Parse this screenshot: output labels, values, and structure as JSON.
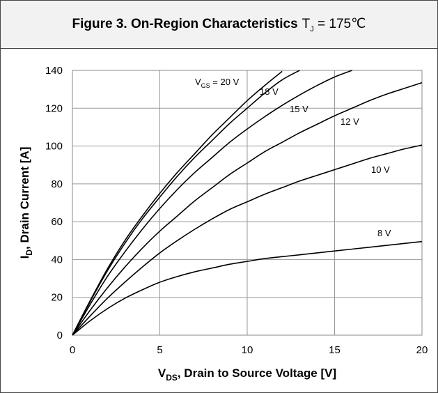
{
  "title": {
    "bold_text": "Figure 3. On-Region Characteristics",
    "cond_var": "T",
    "cond_sub": "J",
    "cond_value": " = 175℃"
  },
  "chart_data": {
    "type": "line",
    "xlabel": "V_DS, Drain to Source Voltage [V]",
    "ylabel": "I_D, Drain Current [A]",
    "xlim": [
      0,
      20
    ],
    "ylim": [
      0,
      140
    ],
    "x_ticks": [
      0,
      5,
      10,
      15,
      20
    ],
    "y_ticks": [
      0,
      20,
      40,
      60,
      80,
      100,
      120,
      140
    ],
    "grid": true,
    "x": [
      0,
      1,
      2,
      3,
      4,
      5,
      6,
      7,
      8,
      9,
      10,
      11,
      12,
      13,
      14,
      15,
      16,
      17,
      18,
      19,
      20
    ],
    "series": [
      {
        "name": "V_GS = 20 V",
        "values": [
          0,
          18,
          35,
          50,
          63,
          75,
          86,
          96,
          106,
          115,
          124,
          132,
          139.5,
          null,
          null,
          null,
          null,
          null,
          null,
          null,
          null
        ]
      },
      {
        "name": "18 V",
        "values": [
          0,
          17.5,
          34,
          48.5,
          61.5,
          73,
          84,
          94,
          103,
          112,
          120,
          128,
          135,
          141,
          null,
          null,
          null,
          null,
          null,
          null,
          null
        ]
      },
      {
        "name": "15 V",
        "values": [
          0,
          16,
          31,
          44,
          56,
          67,
          77,
          86,
          94,
          102,
          109,
          115.5,
          121.5,
          127,
          132,
          136.5,
          140,
          null,
          null,
          null,
          null
        ]
      },
      {
        "name": "12 V",
        "values": [
          0,
          13,
          25,
          36,
          46,
          55,
          63,
          71,
          78,
          85,
          91,
          97,
          102,
          107,
          111.5,
          116,
          120,
          124,
          127.5,
          130.5,
          133.5
        ]
      },
      {
        "name": "10 V",
        "values": [
          0,
          10,
          19.5,
          28,
          36,
          43.5,
          50,
          56,
          61.5,
          66.5,
          70.5,
          74.5,
          78,
          81.5,
          84.5,
          87.5,
          90.5,
          93.5,
          96,
          98.5,
          100.5
        ]
      },
      {
        "name": "8 V",
        "values": [
          0,
          7.5,
          14,
          19.5,
          24,
          28,
          31,
          33.5,
          35.5,
          37.5,
          39,
          40.5,
          41.5,
          42.5,
          43.5,
          44.5,
          45.5,
          46.5,
          47.5,
          48.5,
          49.5
        ]
      }
    ]
  },
  "labels": {
    "y_main": "I",
    "y_sub": "D",
    "y_rest": ", Drain Current [A]",
    "x_main": "V",
    "x_sub": "DS",
    "x_rest": ", Drain to Source Voltage [V]",
    "vgs_main": "V",
    "vgs_sub": "GS",
    "vgs_rest": " = 20 V",
    "c18": "18 V",
    "c15": "15 V",
    "c12": "12 V",
    "c10": "10 V",
    "c8": "8 V"
  }
}
